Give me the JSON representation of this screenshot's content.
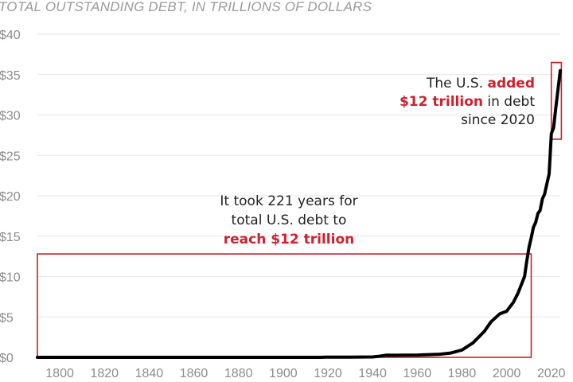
{
  "chart_data": {
    "type": "line",
    "title": "",
    "subtitle": "TOTAL OUTSTANDING DEBT, IN TRILLIONS OF DOLLARS",
    "xlabel": "",
    "ylabel": "",
    "xlim": [
      1790,
      2024
    ],
    "ylim": [
      0,
      40
    ],
    "x_ticks": [
      1800,
      1820,
      1840,
      1860,
      1880,
      1900,
      1920,
      1940,
      1960,
      1980,
      2000,
      2020
    ],
    "x_tick_labels": [
      "1800",
      "1820",
      "1840",
      "1860",
      "1880",
      "1900",
      "1920",
      "1940",
      "1960",
      "1980",
      "2000",
      "2020"
    ],
    "y_ticks": [
      0,
      5,
      10,
      15,
      20,
      25,
      30,
      35,
      40
    ],
    "y_tick_labels": [
      "$0",
      "$5",
      "$10",
      "$15",
      "$20",
      "$25",
      "$30",
      "$35",
      "$40"
    ],
    "grid": true,
    "series": [
      {
        "color": "#000000",
        "x": [
          1790,
          1800,
          1850,
          1900,
          1917,
          1919,
          1930,
          1940,
          1943,
          1946,
          1950,
          1960,
          1970,
          1975,
          1980,
          1985,
          1990,
          1993,
          1997,
          2000,
          2003,
          2005,
          2008,
          2009,
          2010,
          2011,
          2012,
          2013,
          2014,
          2015,
          2016,
          2017,
          2018,
          2019,
          2020,
          2021,
          2022,
          2023,
          2024
        ],
        "y": [
          0.0,
          0.0,
          0.0,
          0.0,
          0.0,
          0.03,
          0.02,
          0.05,
          0.14,
          0.27,
          0.26,
          0.29,
          0.38,
          0.53,
          0.91,
          1.8,
          3.2,
          4.4,
          5.4,
          5.7,
          6.8,
          7.9,
          10.0,
          11.9,
          13.6,
          14.8,
          16.1,
          16.7,
          17.8,
          18.2,
          19.6,
          20.2,
          21.5,
          22.7,
          27.7,
          28.4,
          30.9,
          33.2,
          35.5
        ]
      }
    ],
    "highlight_boxes": [
      {
        "x": [
          1790,
          2011
        ],
        "y": [
          0,
          12.8
        ]
      },
      {
        "x": [
          2020,
          2024.5
        ],
        "y": [
          27,
          36.5
        ]
      }
    ],
    "annotations": [
      {
        "lines": [
          [
            {
              "text": "It took 221 years for",
              "highlight": false
            }
          ],
          [
            {
              "text": "total U.S. debt to",
              "highlight": false
            }
          ],
          [
            {
              "text": "reach $12 trillion",
              "highlight": true
            }
          ]
        ]
      },
      {
        "lines": [
          [
            {
              "text": "The U.S. ",
              "highlight": false
            },
            {
              "text": "added",
              "highlight": true
            }
          ],
          [
            {
              "text": "$12 trillion",
              "highlight": true
            },
            {
              "text": " in debt",
              "highlight": false
            }
          ],
          [
            {
              "text": "since 2020",
              "highlight": false
            }
          ]
        ]
      }
    ],
    "colors": {
      "line": "#000000",
      "highlight": "#d0202e",
      "box": "#c8202d",
      "grid": "#e6e6e6",
      "axis_text": "#8c8c8c",
      "subtitle": "#9a9a9a"
    }
  }
}
